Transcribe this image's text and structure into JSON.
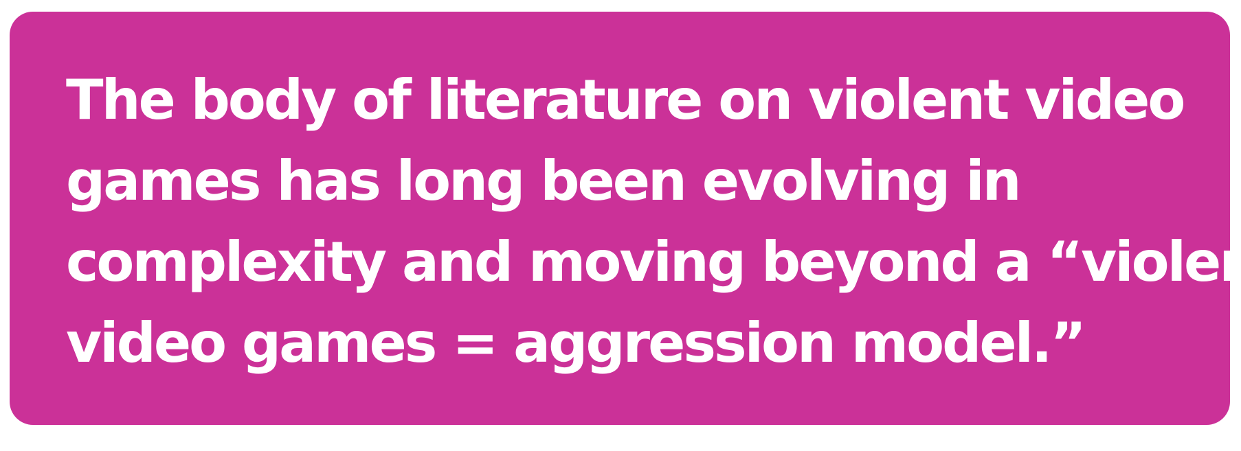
{
  "quote": {
    "lines": [
      "The body of literature on violent video",
      "games has long been evolving in",
      "complexity and moving beyond a “violent",
      "video games = aggression model.”"
    ]
  },
  "colors": {
    "card_background": "#cb3198",
    "text": "#ffffff",
    "page_background": "#ffffff"
  }
}
